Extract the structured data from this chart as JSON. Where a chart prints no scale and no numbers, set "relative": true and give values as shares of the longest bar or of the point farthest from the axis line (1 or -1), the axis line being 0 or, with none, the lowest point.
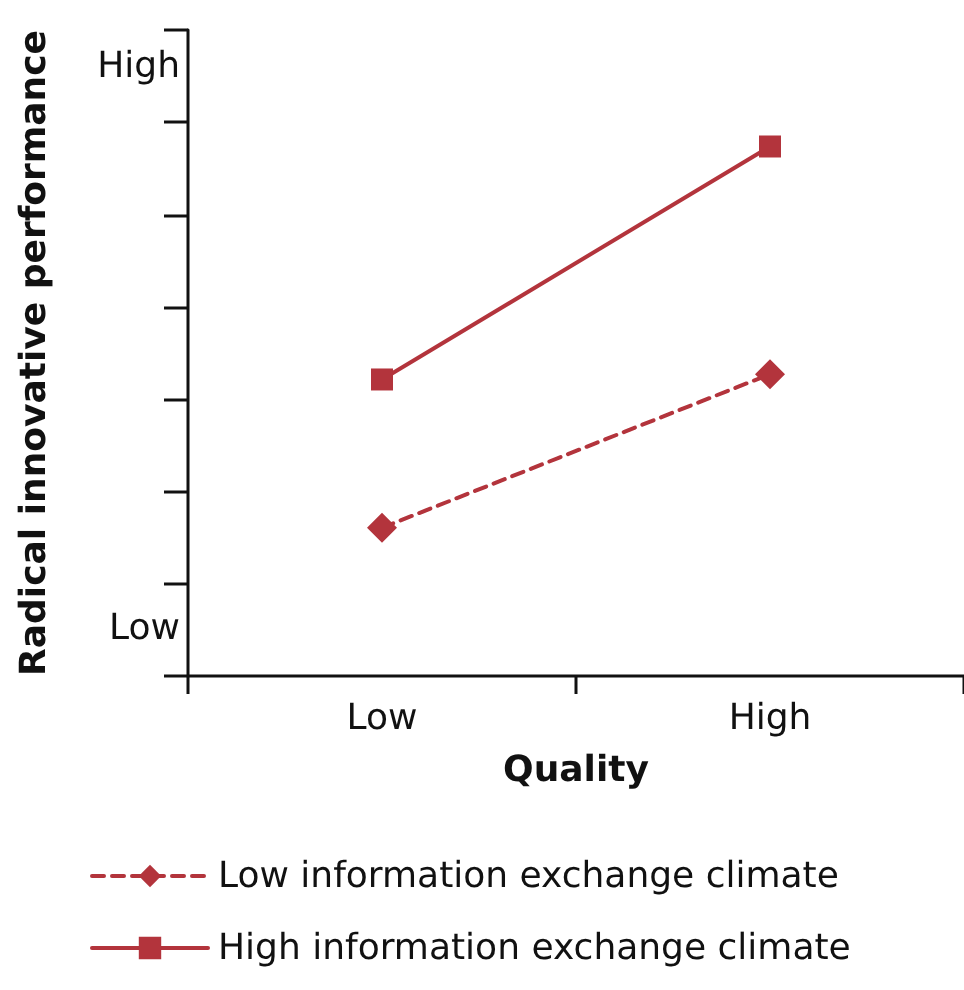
{
  "chart_data": {
    "type": "line",
    "xlabel": "Quality",
    "ylabel": "Radical innovative performance",
    "relative": true,
    "categories": [
      "Low",
      "High"
    ],
    "annotations": [
      "High",
      "Low"
    ],
    "series": [
      {
        "name": "Low information exchange climate",
        "color": "#b3343c",
        "values": [
          0.28,
          0.57
        ],
        "marker": "diamond",
        "line_style": "dashed"
      },
      {
        "name": "High information exchange climate",
        "color": "#b3343c",
        "values": [
          0.56,
          1
        ],
        "marker": "square",
        "line_style": "solid"
      }
    ],
    "legend": "bottom",
    "grid": false
  }
}
